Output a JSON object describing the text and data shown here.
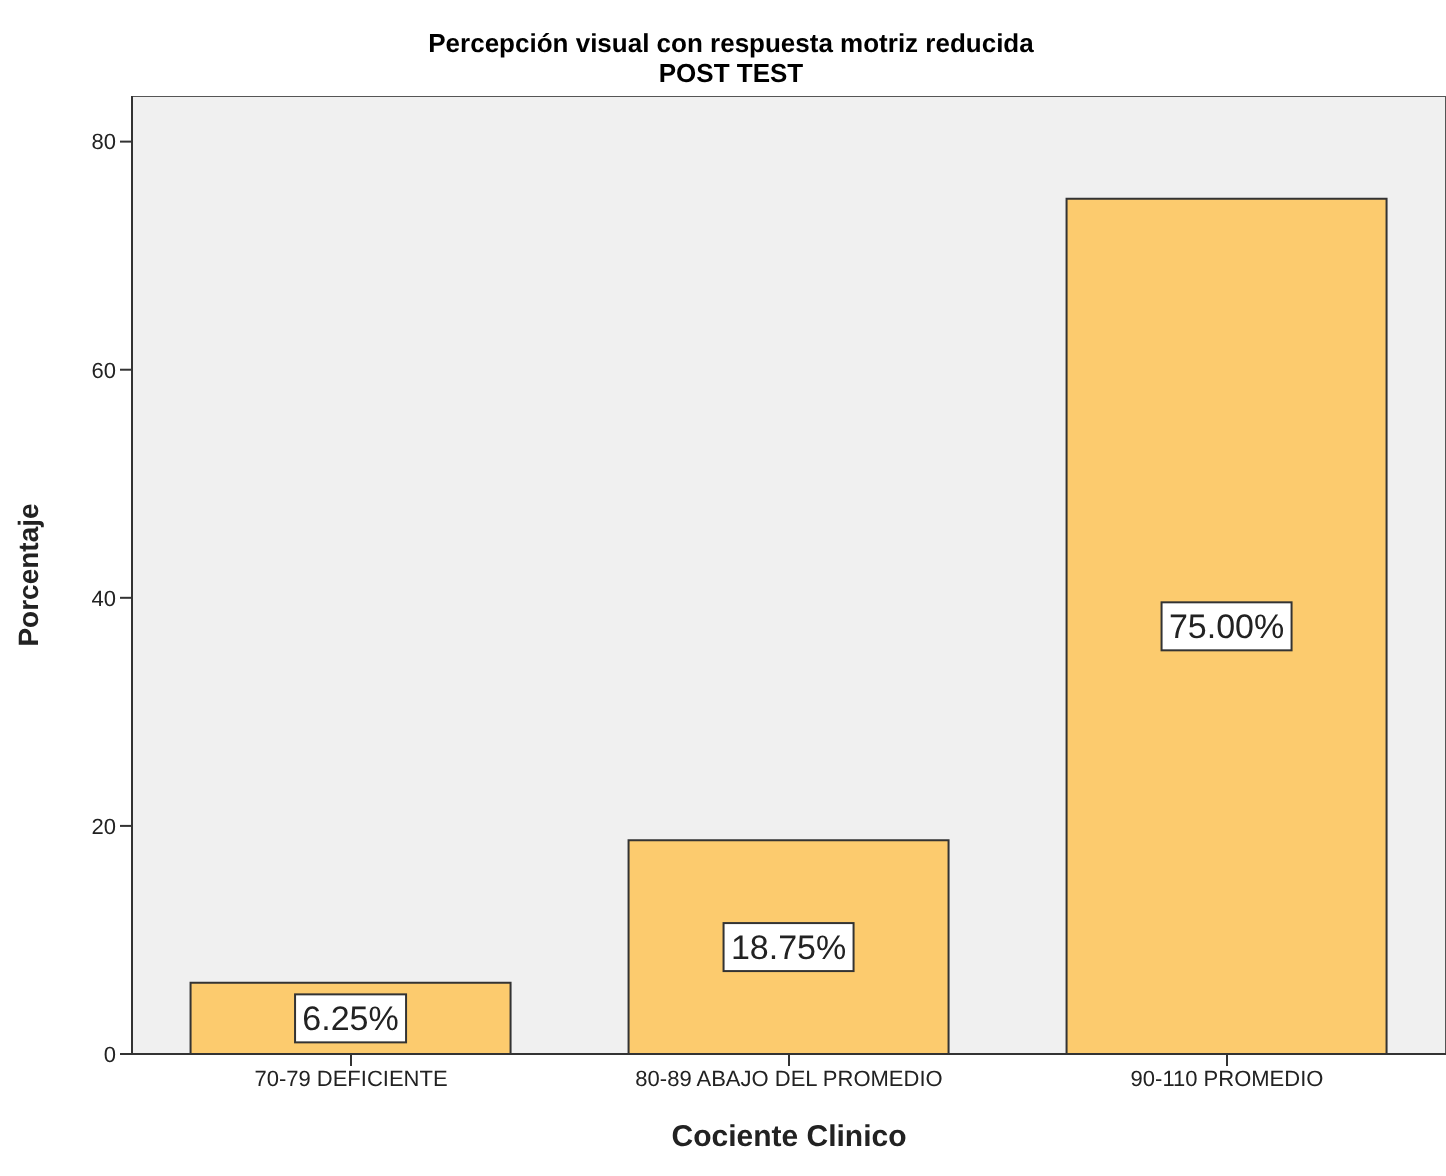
{
  "chart_data": {
    "type": "bar",
    "title": "Percepción visual con respuesta motriz reducida",
    "subtitle": "POST TEST",
    "xlabel": "Cociente Clinico",
    "ylabel": "Porcentaje",
    "categories": [
      "70-79 DEFICIENTE",
      "80-89 ABAJO DEL PROMEDIO",
      "90-110 PROMEDIO"
    ],
    "values": [
      6.25,
      18.75,
      75
    ],
    "value_labels": [
      "6.25%",
      "18.75%",
      "75.00%"
    ],
    "color": "#fccb6e",
    "ylim": [
      0,
      84
    ],
    "yticks": [
      0,
      20,
      40,
      60,
      80
    ],
    "grid": false,
    "legend": false
  }
}
